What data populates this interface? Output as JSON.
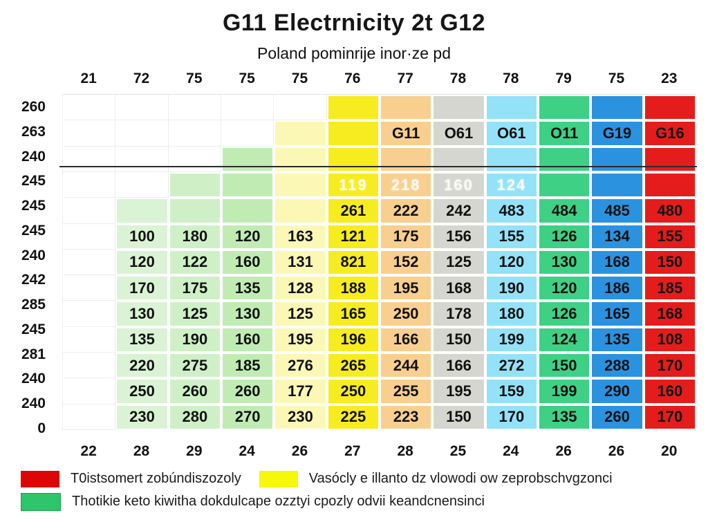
{
  "title": "G11 Electrnicity 2t G12",
  "subtitle": "Poland pominrije inor·ze pd",
  "chart_data": {
    "type": "heatmap",
    "title": "G11 Electrnicity 2t G12",
    "subtitle": "Poland pominrije inor·ze pd",
    "top_axis_labels": [
      "21",
      "72",
      "75",
      "75",
      "75",
      "76",
      "77",
      "78",
      "78",
      "79",
      "75",
      "23"
    ],
    "left_axis_labels": [
      "260",
      "263",
      "240",
      "245",
      "245",
      "245",
      "240",
      "242",
      "285",
      "245",
      "281",
      "240",
      "240",
      "0"
    ],
    "bottom_axis_labels": [
      "22",
      "28",
      "29",
      "24",
      "26",
      "27",
      "28",
      "25",
      "24",
      "26",
      "26",
      "20"
    ],
    "column_colors": [
      null,
      "#daf3d4",
      "#cff0c6",
      "#c0ecb4",
      "#fbf8b6",
      "#f7ec1f",
      "#f8cf8e",
      "#d6d6d0",
      "#93e2f8",
      "#3ed186",
      "#2b92e0",
      "#e41c1c"
    ],
    "column_start_row": [
      99,
      5,
      4,
      3,
      2,
      1,
      1,
      1,
      1,
      1,
      1,
      1
    ],
    "faint_row_index": 3,
    "rows": [
      [
        "",
        "",
        "",
        "",
        "",
        "",
        "",
        "",
        "",
        "",
        "",
        ""
      ],
      [
        "",
        "",
        "",
        "",
        "",
        "",
        "G11",
        "O61",
        "O61",
        "O11",
        "G19",
        "G16"
      ],
      [
        "",
        "",
        "",
        "",
        "",
        "",
        "",
        "",
        "",
        "",
        "",
        ""
      ],
      [
        "",
        "",
        "",
        "",
        "",
        "119",
        "218",
        "160",
        "124",
        "",
        "",
        ""
      ],
      [
        "",
        "",
        "",
        "",
        "",
        "261",
        "222",
        "242",
        "483",
        "484",
        "485",
        "480"
      ],
      [
        "",
        "100",
        "180",
        "120",
        "163",
        "121",
        "175",
        "156",
        "155",
        "126",
        "134",
        "155"
      ],
      [
        "",
        "120",
        "122",
        "160",
        "131",
        "821",
        "152",
        "125",
        "120",
        "130",
        "168",
        "150"
      ],
      [
        "",
        "170",
        "175",
        "135",
        "128",
        "188",
        "195",
        "168",
        "190",
        "120",
        "186",
        "185"
      ],
      [
        "",
        "130",
        "125",
        "130",
        "125",
        "165",
        "250",
        "178",
        "180",
        "126",
        "165",
        "168"
      ],
      [
        "",
        "135",
        "190",
        "160",
        "195",
        "196",
        "166",
        "150",
        "199",
        "124",
        "135",
        "108"
      ],
      [
        "",
        "220",
        "275",
        "185",
        "276",
        "265",
        "244",
        "166",
        "272",
        "150",
        "288",
        "170"
      ],
      [
        "",
        "250",
        "260",
        "260",
        "177",
        "250",
        "255",
        "195",
        "159",
        "199",
        "290",
        "160"
      ],
      [
        "",
        "230",
        "280",
        "270",
        "230",
        "225",
        "223",
        "150",
        "170",
        "135",
        "260",
        "170"
      ]
    ],
    "legend": [
      {
        "color": "#dd0505",
        "label": "T0istsomert zobúndiszozoly"
      },
      {
        "color": "#f7f70a",
        "label": "Vasócly e illanto dz vlowodi ow zeprobschvgzonci"
      },
      {
        "color": "#2fc56a",
        "label": "Thotikie keto kiwitha dokdulcape ozztyi cpozly odvii keandcnensinci"
      }
    ],
    "legend_rows": [
      [
        0,
        1
      ],
      [
        2
      ]
    ]
  }
}
